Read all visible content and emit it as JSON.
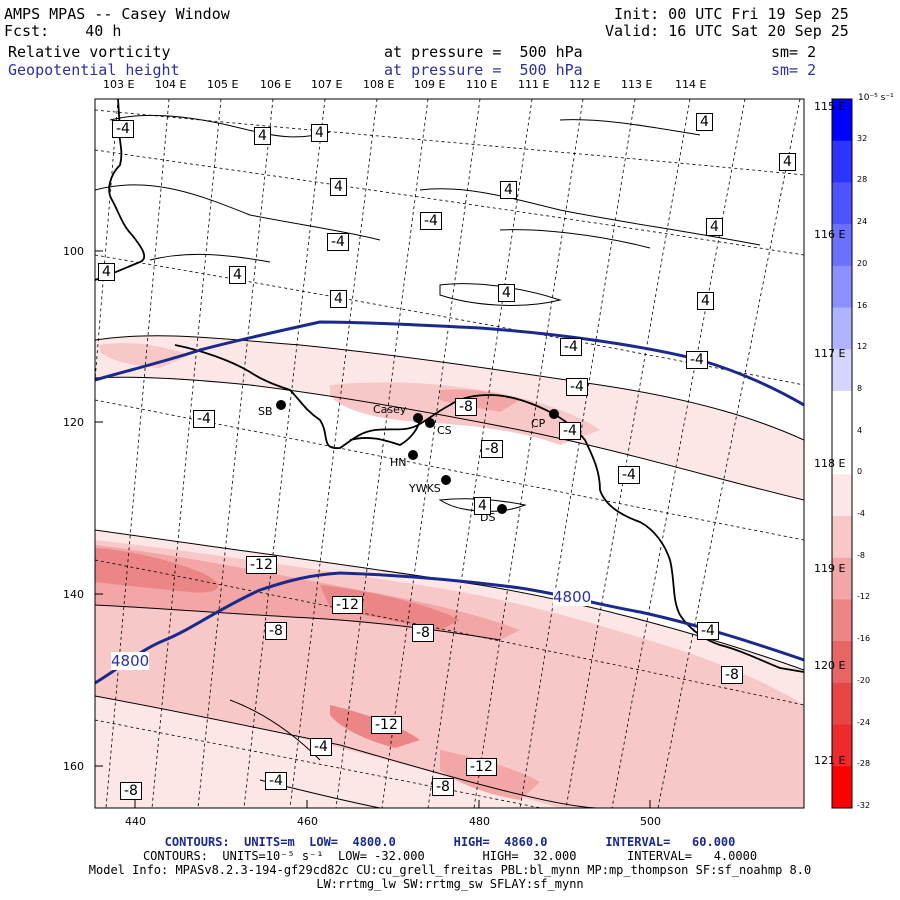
{
  "header": {
    "title": "AMPS MPAS -- Casey Window",
    "forecast": "Fcst:    40 h",
    "init": "Init: 00 UTC Fri 19 Sep 25",
    "valid": "Valid: 16 UTC Sat 20 Sep 25",
    "field1": {
      "name": "Relative vorticity",
      "pressure": "at pressure =  500 hPa",
      "sm": "sm= 2"
    },
    "field2": {
      "name": "Geopotential height",
      "pressure": "at pressure =  500 hPa",
      "sm": "sm= 2"
    }
  },
  "lon_labels_top": [
    "103 E",
    "104 E",
    "105 E",
    "106 E",
    "107 E",
    "108 E",
    "109 E",
    "110 E",
    "111 E",
    "112 E",
    "113 E",
    "114 E"
  ],
  "lon_labels_right": [
    "115 E",
    "116 E",
    "117 E",
    "118 E",
    "119 E",
    "120 E",
    "121 E"
  ],
  "y_axis": [
    "100",
    "120",
    "140",
    "160"
  ],
  "x_axis": [
    "440",
    "460",
    "480",
    "500"
  ],
  "stations": [
    {
      "name": "SB"
    },
    {
      "name": "Casey"
    },
    {
      "name": "CS"
    },
    {
      "name": "CP"
    },
    {
      "name": "HN"
    },
    {
      "name": "YWKS"
    },
    {
      "name": "DS"
    }
  ],
  "contour_labels": [
    "-4",
    "4",
    "4",
    "4",
    "4",
    "4",
    "4",
    "-4",
    "4",
    "4",
    "4",
    "-4",
    "4",
    "4",
    "4",
    "-4",
    "-4",
    "-4",
    "-8",
    "-8",
    "-4",
    "-4",
    "-4",
    "4",
    "-12",
    "-12",
    "-8",
    "-8",
    "-8",
    "-12",
    "-4",
    "-4",
    "-12",
    "-8",
    "-8",
    "-4"
  ],
  "height_labels": [
    "4800",
    "4800"
  ],
  "colorbar": {
    "unit": "10⁻⁵ s⁻¹",
    "labels": [
      "32",
      "28",
      "24",
      "20",
      "16",
      "12",
      "8",
      "4",
      "0",
      "-4",
      "-8",
      "-12",
      "-16",
      "-20",
      "-24",
      "-28",
      "-32"
    ],
    "colors": [
      "#0000ff",
      "#2e34ff",
      "#4d52ff",
      "#6b70ff",
      "#8c90ff",
      "#b0b3ff",
      "#d4d6ff",
      "#ffffff",
      "#ffffff",
      "#fde6e6",
      "#f8c8c8",
      "#f2a6a6",
      "#ec8686",
      "#e86565",
      "#e84545",
      "#ef2a2a",
      "#ff0000"
    ]
  },
  "footer": {
    "line1": "CONTOURS:  UNITS=m  LOW=  4800.0        HIGH=  4860.0        INTERVAL=   60.000",
    "line2": "CONTOURS:  UNITS=10⁻⁵ s⁻¹  LOW= -32.000        HIGH=  32.000       INTERVAL=   4.0000",
    "line3": "Model Info: MPASv8.2.3-194-gf29cd82c CU:cu_grell_freitas PBL:bl_mynn MP:mp_thompson SF:sf_noahmp 8.0",
    "line4": "LW:rrtmg_lw SW:rrtmg_sw SFLAY:sf_mynn"
  }
}
